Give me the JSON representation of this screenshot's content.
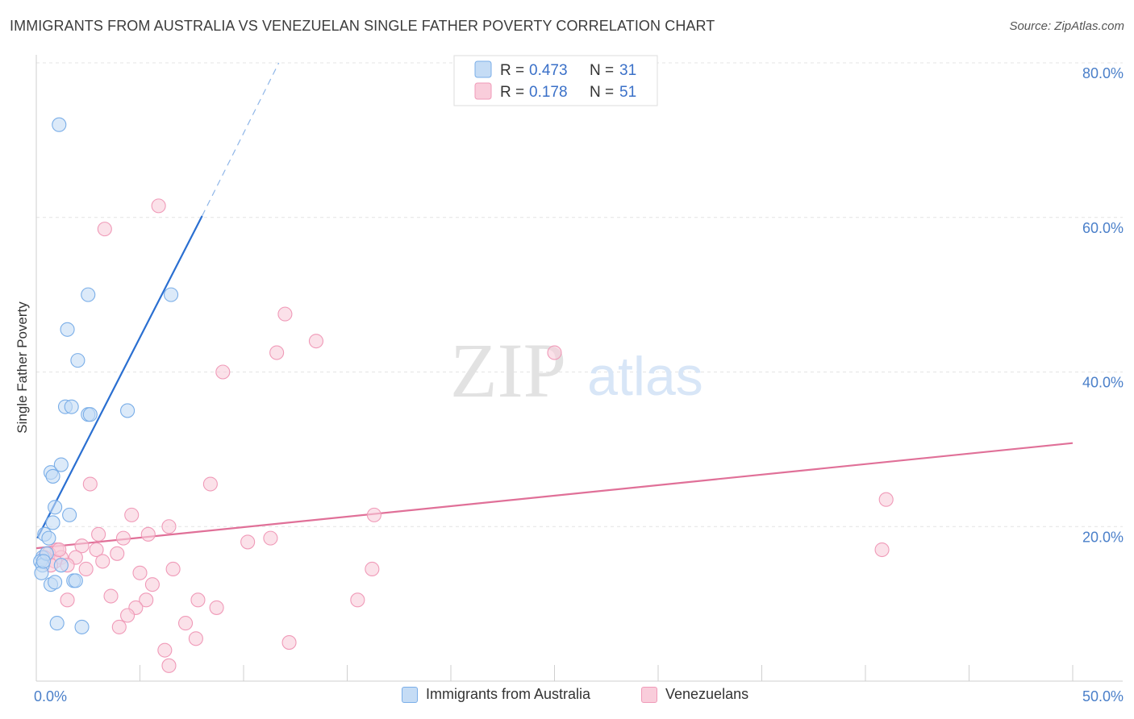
{
  "title": "IMMIGRANTS FROM AUSTRALIA VS VENEZUELAN SINGLE FATHER POVERTY CORRELATION CHART",
  "source": "Source: ZipAtlas.com",
  "watermark": {
    "zip": "ZIP",
    "atlas": "atlas"
  },
  "chart_data": {
    "type": "scatter",
    "title": "IMMIGRANTS FROM AUSTRALIA VS VENEZUELAN SINGLE FATHER POVERTY CORRELATION CHART",
    "xlabel": "",
    "ylabel": "Single Father Poverty",
    "xlim": [
      0,
      50
    ],
    "ylim": [
      0,
      80
    ],
    "x_tick_labels": [
      "0.0%",
      "50.0%"
    ],
    "y_ticks": [
      20,
      40,
      60,
      80
    ],
    "y_tick_labels": [
      "20.0%",
      "40.0%",
      "60.0%",
      "80.0%"
    ],
    "legend": [
      {
        "label": "R = ",
        "r": "0.473",
        "n_label": "N = ",
        "n": "31"
      },
      {
        "label": "R = ",
        "r": " 0.178",
        "n_label": "N = ",
        "n": "51"
      }
    ],
    "series": [
      {
        "name": "Immigrants from Australia",
        "color": "#7aaee8",
        "fill": "#c5dcf5",
        "line_color": "#2a6fd1",
        "trend": {
          "x0": 0.05,
          "y0": 18.5,
          "x1": 8.0,
          "y1": 60.2,
          "dash_x1": 11.7,
          "dash_y1": 80.0
        },
        "points": [
          [
            1.1,
            72.0
          ],
          [
            2.5,
            50.0
          ],
          [
            6.5,
            50.0
          ],
          [
            1.5,
            45.5
          ],
          [
            2.0,
            41.5
          ],
          [
            1.4,
            35.5
          ],
          [
            1.7,
            35.5
          ],
          [
            2.5,
            34.5
          ],
          [
            2.6,
            34.5
          ],
          [
            4.4,
            35.0
          ],
          [
            0.7,
            27.0
          ],
          [
            0.8,
            26.5
          ],
          [
            1.2,
            28.0
          ],
          [
            0.9,
            22.5
          ],
          [
            1.6,
            21.5
          ],
          [
            0.8,
            20.5
          ],
          [
            0.4,
            19.0
          ],
          [
            0.6,
            18.5
          ],
          [
            0.3,
            16.0
          ],
          [
            0.2,
            15.5
          ],
          [
            0.3,
            15.0
          ],
          [
            0.25,
            14.0
          ],
          [
            1.2,
            15.0
          ],
          [
            1.8,
            13.0
          ],
          [
            1.9,
            13.0
          ],
          [
            0.7,
            12.5
          ],
          [
            0.9,
            12.8
          ],
          [
            1.0,
            7.5
          ],
          [
            2.2,
            7.0
          ],
          [
            0.5,
            16.5
          ],
          [
            0.35,
            15.5
          ]
        ]
      },
      {
        "name": "Venezuelans",
        "color": "#f09ab8",
        "fill": "#f9cddb",
        "line_color": "#e07098",
        "trend": {
          "x0": 0.0,
          "y0": 17.2,
          "x1": 50.0,
          "y1": 30.8
        },
        "points": [
          [
            5.9,
            61.5
          ],
          [
            3.3,
            58.5
          ],
          [
            12.0,
            47.5
          ],
          [
            13.5,
            44.0
          ],
          [
            11.6,
            42.5
          ],
          [
            25.0,
            42.5
          ],
          [
            9.0,
            40.0
          ],
          [
            2.6,
            25.5
          ],
          [
            8.4,
            25.5
          ],
          [
            16.3,
            21.5
          ],
          [
            41.0,
            23.5
          ],
          [
            40.8,
            17.0
          ],
          [
            4.6,
            21.5
          ],
          [
            6.4,
            20.0
          ],
          [
            3.0,
            19.0
          ],
          [
            4.2,
            18.5
          ],
          [
            5.4,
            19.0
          ],
          [
            10.2,
            18.0
          ],
          [
            11.3,
            18.5
          ],
          [
            2.2,
            17.5
          ],
          [
            2.9,
            17.0
          ],
          [
            3.9,
            16.5
          ],
          [
            1.0,
            17.0
          ],
          [
            0.6,
            16.5
          ],
          [
            1.2,
            16.0
          ],
          [
            1.9,
            16.0
          ],
          [
            0.9,
            15.5
          ],
          [
            1.5,
            15.0
          ],
          [
            3.2,
            15.5
          ],
          [
            6.6,
            14.5
          ],
          [
            16.2,
            14.5
          ],
          [
            2.4,
            14.5
          ],
          [
            5.0,
            14.0
          ],
          [
            5.6,
            12.5
          ],
          [
            3.6,
            11.0
          ],
          [
            1.5,
            10.5
          ],
          [
            5.3,
            10.5
          ],
          [
            7.8,
            10.5
          ],
          [
            8.7,
            9.5
          ],
          [
            15.5,
            10.5
          ],
          [
            4.8,
            9.5
          ],
          [
            4.4,
            8.5
          ],
          [
            7.2,
            7.5
          ],
          [
            4.0,
            7.0
          ],
          [
            7.7,
            5.5
          ],
          [
            12.2,
            5.0
          ],
          [
            6.2,
            4.0
          ],
          [
            6.4,
            2.0
          ],
          [
            0.4,
            16.0
          ],
          [
            0.7,
            15.0
          ],
          [
            1.1,
            17.0
          ]
        ]
      }
    ]
  }
}
